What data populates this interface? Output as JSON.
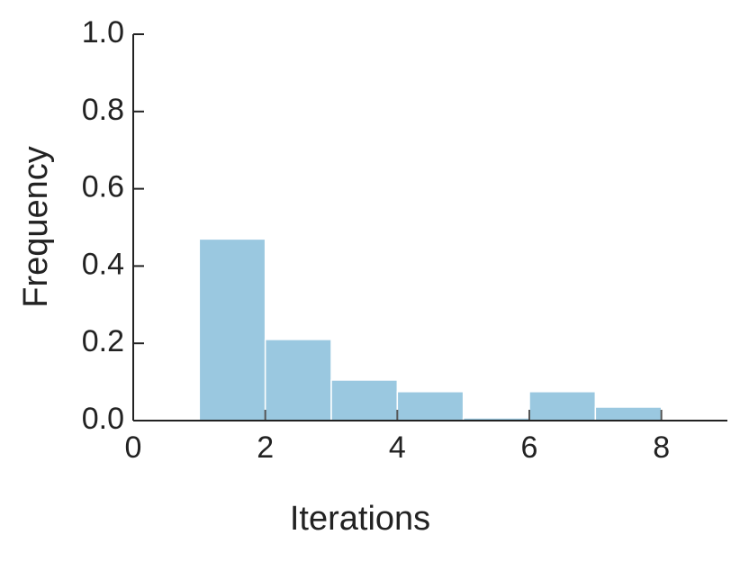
{
  "chart_data": {
    "type": "histogram",
    "xlabel": "Iterations",
    "ylabel": "Frequency",
    "bins": [
      1,
      2,
      3,
      4,
      5,
      6,
      7,
      8
    ],
    "values": [
      0.47,
      0.21,
      0.105,
      0.075,
      0.007,
      0.075,
      0.035
    ],
    "color": "#9ac8e0",
    "xlim": [
      0,
      9
    ],
    "xticks": [
      0,
      2,
      4,
      6,
      8
    ],
    "ylim": [
      0,
      1
    ],
    "yticks": [
      {
        "value": 0,
        "label": "0.0"
      },
      {
        "value": 0.2,
        "label": "0.2"
      },
      {
        "value": 0.4,
        "label": "0.4"
      },
      {
        "value": 0.6,
        "label": "0.6"
      },
      {
        "value": 0.8,
        "label": "0.8"
      },
      {
        "value": 1,
        "label": "1.0"
      }
    ],
    "grid": false
  }
}
